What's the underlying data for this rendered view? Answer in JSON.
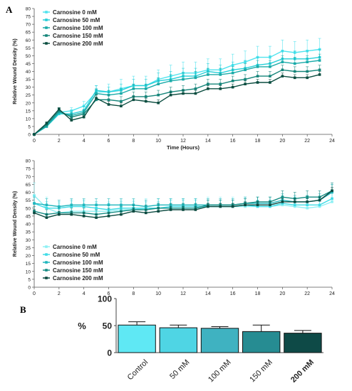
{
  "panels": {
    "a_label": "A",
    "b_label": "B"
  },
  "chart_data": [
    {
      "type": "line",
      "xlabel": "Time (Hours)",
      "ylabel": "Relative Wound Density (%)",
      "xlim": [
        0,
        24
      ],
      "ylim": [
        0,
        80
      ],
      "xticks": [
        0,
        2,
        4,
        6,
        8,
        10,
        12,
        14,
        16,
        18,
        20,
        22,
        24
      ],
      "yticks": [
        0,
        5,
        10,
        15,
        20,
        25,
        30,
        35,
        40,
        45,
        50,
        55,
        60,
        65,
        70,
        75,
        80
      ],
      "grid": false,
      "legend": "top-left",
      "x": [
        0,
        1,
        2,
        3,
        4,
        5,
        6,
        7,
        8,
        9,
        10,
        11,
        12,
        13,
        14,
        15,
        16,
        17,
        18,
        19,
        20,
        21,
        22,
        23
      ],
      "series": [
        {
          "name": "Carnosine 0 mM",
          "color": "#4fe3ee",
          "values": [
            0,
            6,
            14,
            15,
            18,
            27,
            27,
            29,
            31,
            31,
            35,
            37,
            39,
            39,
            41,
            41,
            44,
            46,
            49,
            49,
            53,
            52,
            53,
            54
          ],
          "error": [
            0,
            1,
            2,
            2,
            3,
            4,
            5,
            6,
            6,
            6,
            6,
            7,
            7,
            7,
            7,
            7,
            7,
            7,
            7,
            7,
            7,
            7,
            7,
            7
          ]
        },
        {
          "name": "Carnosine 50 mM",
          "color": "#26cfd8",
          "values": [
            0,
            5,
            13,
            13,
            15,
            28,
            27,
            28,
            31,
            31,
            34,
            35,
            37,
            37,
            40,
            39,
            41,
            42,
            44,
            45,
            48,
            48,
            48,
            49
          ],
          "error": [
            0,
            1,
            2,
            2,
            3,
            3,
            3,
            4,
            4,
            4,
            5,
            5,
            5,
            5,
            5,
            5,
            5,
            5,
            5,
            5,
            5,
            5,
            5,
            5
          ]
        },
        {
          "name": "Carnosine 100 mM",
          "color": "#1aaba9",
          "values": [
            0,
            5,
            14,
            12,
            14,
            26,
            25,
            26,
            29,
            29,
            32,
            34,
            35,
            36,
            38,
            38,
            39,
            41,
            43,
            43,
            46,
            45,
            46,
            47
          ],
          "error": [
            0,
            1,
            2,
            2,
            2,
            3,
            3,
            3,
            3,
            3,
            4,
            4,
            4,
            4,
            4,
            4,
            4,
            4,
            4,
            4,
            4,
            4,
            4,
            4
          ]
        },
        {
          "name": "Carnosine 150 mM",
          "color": "#15857a",
          "values": [
            0,
            6,
            15,
            11,
            13,
            22,
            22,
            21,
            24,
            24,
            25,
            27,
            28,
            29,
            32,
            32,
            34,
            35,
            37,
            37,
            41,
            40,
            40,
            41
          ],
          "error": [
            0,
            1,
            2,
            2,
            2,
            3,
            3,
            3,
            3,
            3,
            3,
            3,
            3,
            3,
            3,
            3,
            3,
            3,
            3,
            3,
            3,
            3,
            3,
            3
          ]
        },
        {
          "name": "Carnosine 200 mM",
          "color": "#0b4d40",
          "values": [
            0,
            7,
            16,
            9,
            11,
            23,
            19,
            18,
            22,
            21,
            20,
            25,
            26,
            26,
            29,
            29,
            30,
            32,
            33,
            33,
            37,
            36,
            36,
            38
          ],
          "error": [
            0,
            1,
            1,
            1,
            1,
            2,
            2,
            2,
            2,
            2,
            2,
            2,
            2,
            2,
            2,
            2,
            2,
            2,
            2,
            2,
            2,
            2,
            2,
            2
          ]
        }
      ]
    },
    {
      "type": "line",
      "xlabel": "",
      "ylabel": "Relative Wound Density (%)",
      "xlim": [
        0,
        24
      ],
      "ylim": [
        0,
        80
      ],
      "xticks": [
        0,
        2,
        4,
        6,
        8,
        10,
        12,
        14,
        16,
        18,
        20,
        22,
        24
      ],
      "yticks": [
        0,
        5,
        10,
        15,
        20,
        25,
        30,
        35,
        40,
        45,
        50,
        55,
        60,
        65,
        70,
        75,
        80
      ],
      "grid": false,
      "legend": "bottom-left",
      "x": [
        0,
        1,
        2,
        3,
        4,
        5,
        6,
        7,
        8,
        9,
        10,
        11,
        12,
        13,
        14,
        15,
        16,
        17,
        18,
        19,
        20,
        21,
        22,
        23,
        24
      ],
      "series": [
        {
          "name": "Carnosine 0 mM",
          "color": "#8ff0f4",
          "values": [
            58,
            50,
            47,
            48,
            48,
            48,
            48,
            49,
            49,
            50,
            50,
            50,
            50,
            50,
            51,
            51,
            51,
            51,
            51,
            51,
            52,
            51,
            50,
            51,
            54
          ],
          "error": [
            8,
            7,
            6,
            6,
            6,
            6,
            6,
            6,
            6,
            6,
            6,
            6,
            6,
            6,
            6,
            6,
            6,
            6,
            6,
            6,
            6,
            6,
            6,
            6,
            6
          ]
        },
        {
          "name": "Carnosine 50 mM",
          "color": "#3fdbe6",
          "values": [
            53,
            50,
            50,
            51,
            51,
            50,
            49,
            50,
            50,
            50,
            50,
            51,
            51,
            51,
            51,
            51,
            51,
            52,
            51,
            51,
            53,
            52,
            52,
            52,
            56
          ],
          "error": [
            5,
            4,
            4,
            4,
            4,
            4,
            4,
            4,
            4,
            4,
            4,
            4,
            4,
            4,
            4,
            4,
            4,
            4,
            4,
            4,
            4,
            4,
            4,
            4,
            4
          ]
        },
        {
          "name": "Carnosine 100 mM",
          "color": "#1fb6bd",
          "values": [
            53,
            52,
            51,
            52,
            52,
            52,
            52,
            52,
            52,
            51,
            52,
            52,
            52,
            52,
            52,
            52,
            52,
            53,
            53,
            53,
            55,
            54,
            54,
            55,
            60
          ],
          "error": [
            4,
            4,
            4,
            4,
            4,
            4,
            4,
            4,
            4,
            4,
            4,
            4,
            4,
            4,
            4,
            4,
            4,
            4,
            4,
            4,
            4,
            4,
            4,
            4,
            5
          ]
        },
        {
          "name": "Carnosine 150 mM",
          "color": "#148c84",
          "values": [
            48,
            46,
            47,
            47,
            47,
            46,
            47,
            48,
            49,
            49,
            50,
            50,
            50,
            50,
            52,
            52,
            52,
            53,
            54,
            54,
            57,
            56,
            57,
            57,
            61
          ],
          "error": [
            3,
            3,
            3,
            3,
            3,
            3,
            3,
            3,
            3,
            3,
            3,
            3,
            3,
            3,
            3,
            3,
            3,
            3,
            3,
            3,
            4,
            4,
            4,
            4,
            5
          ]
        },
        {
          "name": "Carnosine 200 mM",
          "color": "#0b4a40",
          "values": [
            47,
            44,
            46,
            46,
            45,
            44,
            45,
            46,
            48,
            47,
            48,
            49,
            49,
            49,
            51,
            51,
            51,
            52,
            52,
            52,
            54,
            54,
            54,
            55,
            61
          ],
          "error": [
            2,
            2,
            2,
            2,
            2,
            2,
            2,
            2,
            2,
            2,
            2,
            2,
            2,
            2,
            2,
            2,
            2,
            2,
            2,
            2,
            2,
            2,
            2,
            2,
            2
          ]
        }
      ]
    },
    {
      "type": "bar",
      "ylabel": "%",
      "ylim": [
        0,
        100
      ],
      "yticks": [
        0,
        50,
        100
      ],
      "categories": [
        "Control",
        "50 mM",
        "100 mM",
        "150 mM",
        "200 mM"
      ],
      "values": [
        51,
        46,
        45,
        39,
        36
      ],
      "error": [
        6,
        5,
        3,
        12,
        5
      ],
      "colors": [
        "#5fe8f4",
        "#4fd5e4",
        "#3fb2c1",
        "#268c92",
        "#0e4a47"
      ],
      "bold_categories": [
        "200 mM"
      ]
    }
  ]
}
